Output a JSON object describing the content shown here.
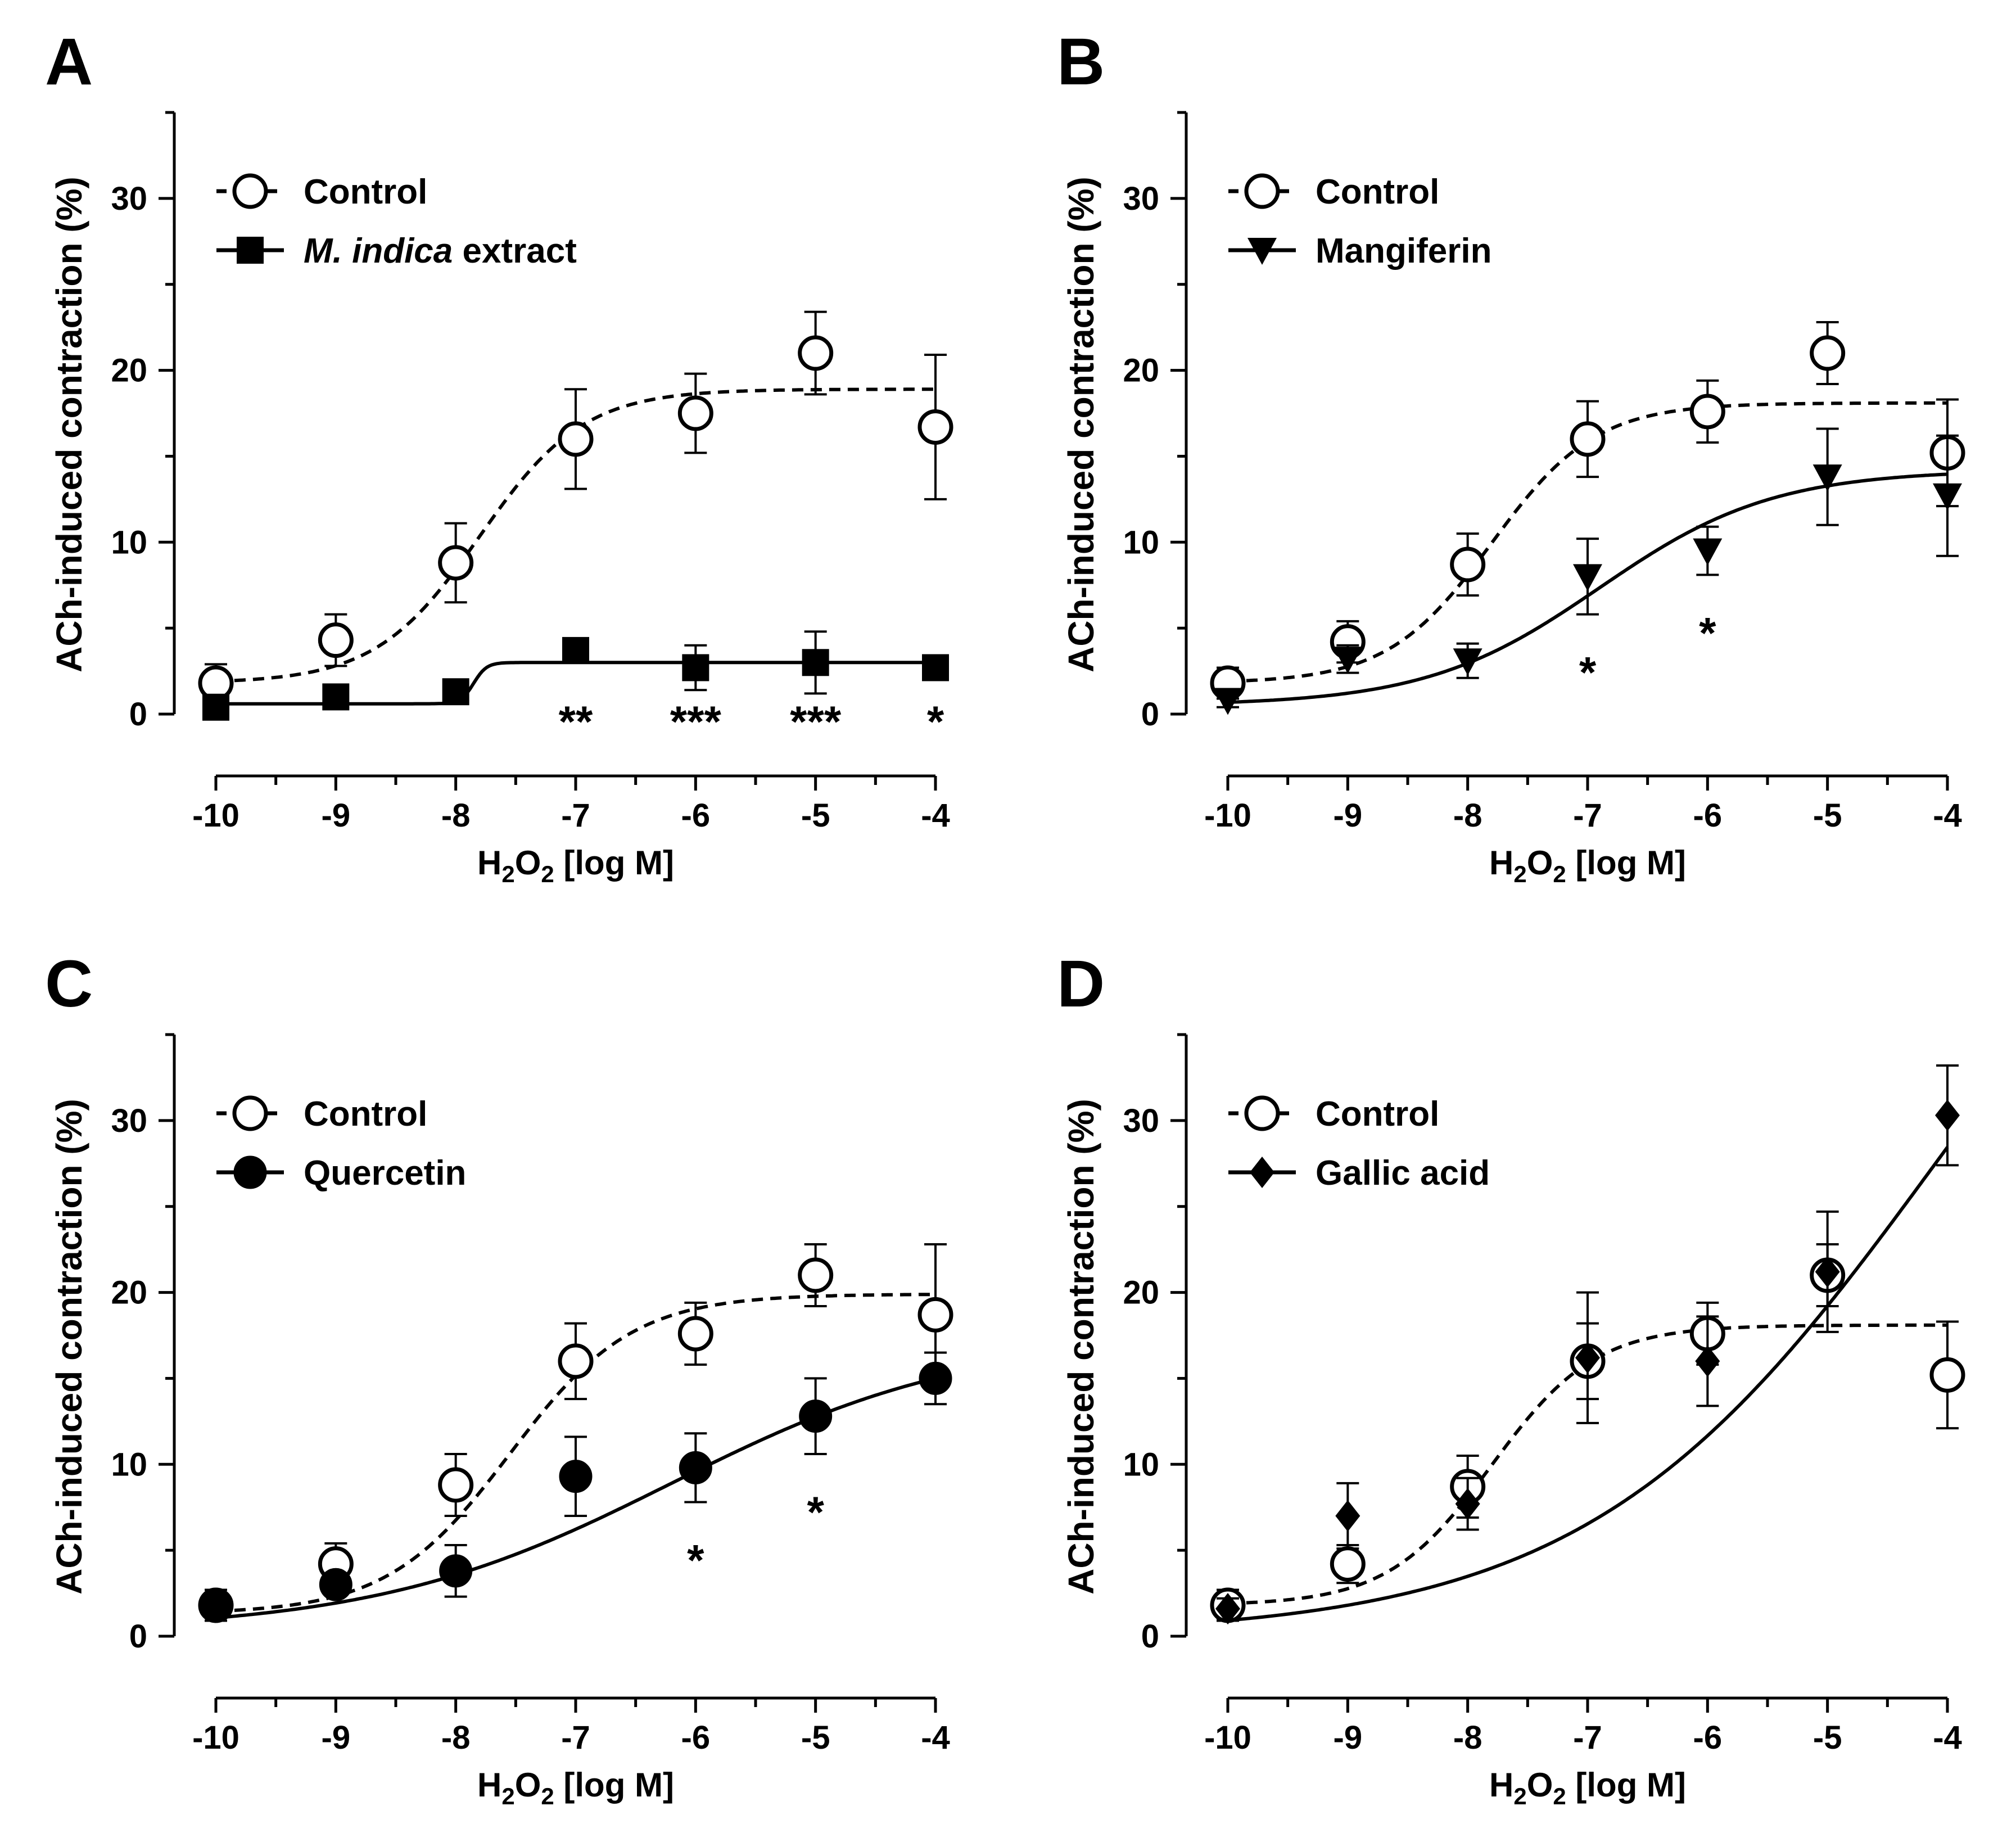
{
  "figure": {
    "panels": [
      {
        "letter": "A",
        "ylabel": "ACh-induced contraction (%)",
        "xlabel_parts": [
          "H",
          "2",
          "O",
          "2",
          " [log M]"
        ],
        "legend": [
          {
            "label_parts": [
              {
                "text": "M. indica",
                "italic": true
              },
              {
                "text": " extract",
                "italic": false
              }
            ]
          }
        ]
      },
      {
        "letter": "B",
        "ylabel": "ACh-induced contraction (%)",
        "xlabel_parts": [
          "H",
          "2",
          "O",
          "2",
          " [log M]"
        ],
        "legend": [
          {
            "label_parts": [
              {
                "text": "Mangiferin",
                "italic": false
              }
            ]
          }
        ]
      },
      {
        "letter": "C",
        "ylabel": "ACh-induced contraction (%)",
        "xlabel_parts": [
          "H",
          "2",
          "O",
          "2",
          " [log M]"
        ],
        "legend": [
          {
            "label_parts": [
              {
                "text": "Quercetin",
                "italic": false
              }
            ]
          }
        ]
      },
      {
        "letter": "D",
        "ylabel": "ACh-induced contraction (%)",
        "xlabel_parts": [
          "H",
          "2",
          "O",
          "2",
          " [log M]"
        ],
        "legend": [
          {
            "label_parts": [
              {
                "text": "Gallic acid",
                "italic": false
              }
            ]
          }
        ]
      }
    ]
  },
  "chart_data": [
    {
      "type": "scatter",
      "panel": "A",
      "xlabel": "H2O2 [log M]",
      "ylabel": "ACh-induced contraction (%)",
      "xlim": [
        -10,
        -4
      ],
      "ylim": [
        0,
        35
      ],
      "xticks": [
        -10,
        -9,
        -8,
        -7,
        -6,
        -5,
        -4
      ],
      "xtick_labels": [
        "-10",
        "-9",
        "-8",
        "-7",
        "-6",
        "-5",
        "-4"
      ],
      "yticks": [
        0,
        10,
        20,
        30
      ],
      "ytick_labels": [
        "0",
        "10",
        "20",
        "30"
      ],
      "legend_position": "top-left",
      "grid": false,
      "series": [
        {
          "name": "Control",
          "marker": "open-circle",
          "line": "dashed",
          "x": [
            -10,
            -9,
            -8,
            -7,
            -6,
            -5,
            -4
          ],
          "y": [
            1.8,
            4.3,
            8.8,
            16.0,
            17.5,
            21.0,
            16.7
          ],
          "err": [
            1.1,
            1.5,
            2.3,
            2.9,
            2.3,
            2.4,
            4.2
          ],
          "fit": {
            "bottom": 1.8,
            "top": 18.9,
            "logEC50": -7.8,
            "hill": 1.0
          }
        },
        {
          "name": "M. indica extract",
          "marker": "filled-square",
          "line": "solid",
          "x": [
            -10,
            -9,
            -8,
            -7,
            -6,
            -5,
            -4
          ],
          "y": [
            0.4,
            1.0,
            1.3,
            3.7,
            2.7,
            3.0,
            2.7
          ],
          "err": [
            0.3,
            0.3,
            0.4,
            0.4,
            1.3,
            1.8,
            0.3
          ],
          "fit": {
            "bottom": 0.6,
            "top": 3.0,
            "logEC50": -7.85,
            "hill": 8
          }
        }
      ],
      "annotations": [
        {
          "x": -7,
          "text": "**"
        },
        {
          "x": -6,
          "text": "***"
        },
        {
          "x": -5,
          "text": "***"
        },
        {
          "x": -4,
          "text": "*"
        }
      ]
    },
    {
      "type": "scatter",
      "panel": "B",
      "xlabel": "H2O2 [log M]",
      "ylabel": "ACh-induced contraction (%)",
      "xlim": [
        -10,
        -4
      ],
      "ylim": [
        0,
        35
      ],
      "xticks": [
        -10,
        -9,
        -8,
        -7,
        -6,
        -5,
        -4
      ],
      "xtick_labels": [
        "-10",
        "-9",
        "-8",
        "-7",
        "-6",
        "-5",
        "-4"
      ],
      "yticks": [
        0,
        10,
        20,
        30
      ],
      "ytick_labels": [
        "0",
        "10",
        "20",
        "30"
      ],
      "legend_position": "top-left",
      "grid": false,
      "series": [
        {
          "name": "Control",
          "marker": "open-circle",
          "line": "dashed",
          "x": [
            -10,
            -9,
            -8,
            -7,
            -6,
            -5,
            -4
          ],
          "y": [
            1.8,
            4.2,
            8.7,
            16.0,
            17.6,
            21.0,
            15.2
          ],
          "err": [
            0.9,
            1.2,
            1.8,
            2.2,
            1.8,
            1.8,
            3.1
          ],
          "fit": {
            "bottom": 1.8,
            "top": 18.1,
            "logEC50": -7.8,
            "hill": 1.0
          }
        },
        {
          "name": "Mangiferin",
          "marker": "filled-triangle-down",
          "line": "solid",
          "x": [
            -10,
            -9,
            -8,
            -7,
            -6,
            -5,
            -4
          ],
          "y": [
            0.8,
            3.2,
            3.1,
            8.0,
            9.5,
            13.8,
            12.7
          ],
          "err": [
            0.4,
            0.8,
            1.0,
            2.2,
            1.4,
            2.8,
            3.5
          ],
          "fit": {
            "bottom": 0.5,
            "top": 14.2,
            "logEC50": -6.9,
            "hill": 0.6
          }
        }
      ],
      "annotations": [
        {
          "x": -7,
          "text": "*"
        },
        {
          "x": -6,
          "text": "*"
        }
      ]
    },
    {
      "type": "scatter",
      "panel": "C",
      "xlabel": "H2O2 [log M]",
      "ylabel": "ACh-induced contraction (%)",
      "xlim": [
        -10,
        -4
      ],
      "ylim": [
        0,
        35
      ],
      "xticks": [
        -10,
        -9,
        -8,
        -7,
        -6,
        -5,
        -4
      ],
      "xtick_labels": [
        "-10",
        "-9",
        "-8",
        "-7",
        "-6",
        "-5",
        "-4"
      ],
      "yticks": [
        0,
        10,
        20,
        30
      ],
      "ytick_labels": [
        "0",
        "10",
        "20",
        "30"
      ],
      "legend_position": "top-left",
      "grid": false,
      "series": [
        {
          "name": "Control",
          "marker": "open-circle",
          "line": "dashed",
          "x": [
            -10,
            -9,
            -8,
            -7,
            -6,
            -5,
            -4
          ],
          "y": [
            1.8,
            4.2,
            8.8,
            16.0,
            17.6,
            21.0,
            18.7
          ],
          "err": [
            0.9,
            1.2,
            1.8,
            2.2,
            1.8,
            1.8,
            4.1
          ],
          "fit": {
            "bottom": 1.3,
            "top": 19.9,
            "logEC50": -7.55,
            "hill": 0.85
          }
        },
        {
          "name": "Quercetin",
          "marker": "filled-circle",
          "line": "solid",
          "x": [
            -10,
            -9,
            -8,
            -7,
            -6,
            -5,
            -4
          ],
          "y": [
            1.8,
            3.0,
            3.8,
            9.3,
            9.8,
            12.8,
            15.0
          ],
          "err": [
            0.7,
            0.4,
            1.5,
            2.3,
            2.0,
            2.2,
            1.5
          ],
          "fit": {
            "bottom": 0.3,
            "top": 17.5,
            "logEC50": -6.2,
            "hill": 0.35
          }
        }
      ],
      "annotations": [
        {
          "x": -6,
          "text": "*"
        },
        {
          "x": -5,
          "text": "*"
        }
      ]
    },
    {
      "type": "scatter",
      "panel": "D",
      "xlabel": "H2O2 [log M]",
      "ylabel": "ACh-induced contraction (%)",
      "xlim": [
        -10,
        -4
      ],
      "ylim": [
        0,
        35
      ],
      "xticks": [
        -10,
        -9,
        -8,
        -7,
        -6,
        -5,
        -4
      ],
      "xtick_labels": [
        "-10",
        "-9",
        "-8",
        "-7",
        "-6",
        "-5",
        "-4"
      ],
      "yticks": [
        0,
        10,
        20,
        30
      ],
      "ytick_labels": [
        "0",
        "10",
        "20",
        "30"
      ],
      "legend_position": "top-left",
      "grid": false,
      "series": [
        {
          "name": "Control",
          "marker": "open-circle",
          "line": "dashed",
          "x": [
            -10,
            -9,
            -8,
            -7,
            -6,
            -5,
            -4
          ],
          "y": [
            1.8,
            4.2,
            8.7,
            16.0,
            17.6,
            21.0,
            15.2
          ],
          "err": [
            0.9,
            1.1,
            1.8,
            2.2,
            1.8,
            1.8,
            3.1
          ],
          "fit": {
            "bottom": 1.8,
            "top": 18.1,
            "logEC50": -7.8,
            "hill": 1.0
          }
        },
        {
          "name": "Gallic acid",
          "marker": "filled-diamond",
          "line": "solid",
          "x": [
            -10,
            -9,
            -8,
            -7,
            -6,
            -5,
            -4
          ],
          "y": [
            1.6,
            7.0,
            7.7,
            16.2,
            16.0,
            21.2,
            30.3
          ],
          "err": [
            0.6,
            1.9,
            1.5,
            3.8,
            2.6,
            3.5,
            2.9
          ],
          "fit": {
            "bottom": 0,
            "top": 55,
            "logEC50": -4.1,
            "hill": 0.3
          }
        }
      ],
      "annotations": []
    }
  ]
}
